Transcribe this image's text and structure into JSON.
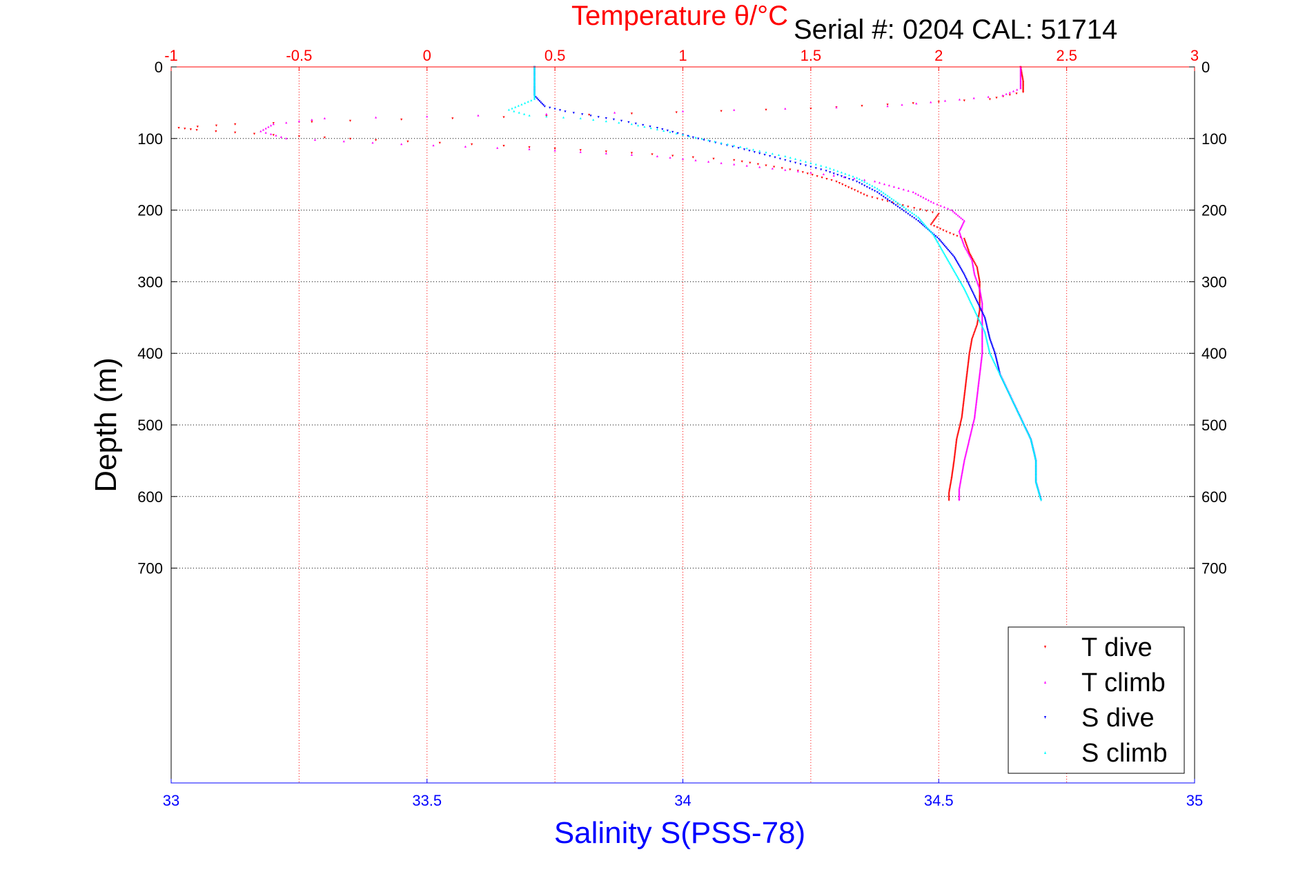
{
  "chart_data": {
    "type": "scatter",
    "title": "Temperature θ/°C",
    "subtitle": "Serial #: 0204  CAL: 51714",
    "xlabel": "Salinity S(PSS-78)",
    "ylabel": "Depth (m)",
    "grid": true,
    "legend_placement": "bottom-right",
    "y_reversed": true,
    "x_temperature": {
      "lim": [
        -1,
        3
      ],
      "ticks": [
        -1,
        -0.5,
        0,
        0.5,
        1,
        1.5,
        2,
        2.5,
        3
      ],
      "tick_labels": [
        "-1",
        "-0.5",
        "0",
        "0.5",
        "1",
        "1.5",
        "2",
        "2.5",
        "3"
      ]
    },
    "x_salinity": {
      "lim": [
        33,
        35
      ],
      "ticks": [
        33,
        33.5,
        34,
        34.5,
        35
      ],
      "tick_labels": [
        "33",
        "33.5",
        "34",
        "34.5",
        "35"
      ]
    },
    "y_depth": {
      "lim": [
        0,
        1000
      ],
      "ticks": [
        0,
        100,
        200,
        300,
        400,
        500,
        600,
        700
      ],
      "tick_labels": [
        "0",
        "100",
        "200",
        "300",
        "400",
        "500",
        "600",
        "700"
      ]
    },
    "series": [
      {
        "name": "T dive",
        "axis": "temperature",
        "marker": "triangle-down",
        "color": "#ff0000",
        "points": [
          [
            2.32,
            0
          ],
          [
            2.33,
            20
          ],
          [
            2.33,
            35
          ],
          [
            2.2,
            45
          ],
          [
            1.5,
            58
          ],
          [
            0.8,
            65
          ],
          [
            0.3,
            70
          ],
          [
            -0.3,
            75
          ],
          [
            -0.75,
            80
          ],
          [
            -0.97,
            85
          ],
          [
            -0.9,
            88
          ],
          [
            -0.6,
            95
          ],
          [
            -0.2,
            102
          ],
          [
            0.3,
            110
          ],
          [
            0.8,
            120
          ],
          [
            1.2,
            130
          ],
          [
            1.45,
            145
          ],
          [
            1.6,
            160
          ],
          [
            1.72,
            180
          ],
          [
            1.88,
            195
          ],
          [
            2.0,
            205
          ],
          [
            1.97,
            220
          ],
          [
            2.03,
            230
          ],
          [
            2.1,
            240
          ],
          [
            2.12,
            260
          ],
          [
            2.15,
            280
          ],
          [
            2.16,
            300
          ],
          [
            2.16,
            320
          ],
          [
            2.16,
            340
          ],
          [
            2.15,
            360
          ],
          [
            2.13,
            380
          ],
          [
            2.12,
            400
          ],
          [
            2.11,
            430
          ],
          [
            2.1,
            460
          ],
          [
            2.09,
            490
          ],
          [
            2.07,
            520
          ],
          [
            2.06,
            550
          ],
          [
            2.05,
            575
          ],
          [
            2.04,
            595
          ],
          [
            2.04,
            605
          ]
        ]
      },
      {
        "name": "T climb",
        "axis": "temperature",
        "marker": "triangle-up",
        "color": "#ff00ff",
        "points": [
          [
            2.32,
            0
          ],
          [
            2.32,
            15
          ],
          [
            2.32,
            30
          ],
          [
            2.25,
            40
          ],
          [
            1.8,
            55
          ],
          [
            1.0,
            62
          ],
          [
            0.2,
            68
          ],
          [
            -0.4,
            72
          ],
          [
            -0.6,
            80
          ],
          [
            -0.65,
            90
          ],
          [
            -0.55,
            100
          ],
          [
            -0.1,
            108
          ],
          [
            0.4,
            115
          ],
          [
            0.9,
            125
          ],
          [
            1.3,
            140
          ],
          [
            1.55,
            150
          ],
          [
            1.75,
            160
          ],
          [
            1.9,
            175
          ],
          [
            1.98,
            190
          ],
          [
            2.05,
            200
          ],
          [
            2.1,
            215
          ],
          [
            2.08,
            230
          ],
          [
            2.1,
            250
          ],
          [
            2.13,
            270
          ],
          [
            2.14,
            290
          ],
          [
            2.16,
            310
          ],
          [
            2.17,
            330
          ],
          [
            2.17,
            350
          ],
          [
            2.17,
            380
          ],
          [
            2.17,
            400
          ],
          [
            2.16,
            430
          ],
          [
            2.15,
            460
          ],
          [
            2.14,
            490
          ],
          [
            2.12,
            520
          ],
          [
            2.1,
            550
          ],
          [
            2.09,
            570
          ],
          [
            2.08,
            590
          ],
          [
            2.08,
            605
          ]
        ]
      },
      {
        "name": "S dive",
        "axis": "salinity",
        "marker": "triangle-down",
        "color": "#0000ff",
        "points": [
          [
            33.71,
            0
          ],
          [
            33.71,
            20
          ],
          [
            33.71,
            40
          ],
          [
            33.73,
            55
          ],
          [
            33.77,
            62
          ],
          [
            33.82,
            68
          ],
          [
            33.88,
            75
          ],
          [
            33.95,
            85
          ],
          [
            34.03,
            100
          ],
          [
            34.12,
            115
          ],
          [
            34.2,
            130
          ],
          [
            34.28,
            145
          ],
          [
            34.34,
            160
          ],
          [
            34.38,
            175
          ],
          [
            34.42,
            195
          ],
          [
            34.46,
            215
          ],
          [
            34.5,
            240
          ],
          [
            34.53,
            265
          ],
          [
            34.55,
            290
          ],
          [
            34.57,
            320
          ],
          [
            34.59,
            350
          ],
          [
            34.6,
            380
          ],
          [
            34.61,
            400
          ],
          [
            34.62,
            430
          ],
          [
            34.64,
            460
          ],
          [
            34.66,
            490
          ],
          [
            34.68,
            520
          ],
          [
            34.69,
            550
          ],
          [
            34.69,
            580
          ],
          [
            34.7,
            605
          ]
        ]
      },
      {
        "name": "S climb",
        "axis": "salinity",
        "marker": "triangle-up",
        "color": "#00ffff",
        "points": [
          [
            33.71,
            0
          ],
          [
            33.71,
            20
          ],
          [
            33.71,
            45
          ],
          [
            33.66,
            60
          ],
          [
            33.7,
            68
          ],
          [
            33.8,
            72
          ],
          [
            33.9,
            80
          ],
          [
            34.0,
            95
          ],
          [
            34.1,
            110
          ],
          [
            34.2,
            125
          ],
          [
            34.28,
            140
          ],
          [
            34.34,
            155
          ],
          [
            34.38,
            170
          ],
          [
            34.42,
            190
          ],
          [
            34.46,
            210
          ],
          [
            34.49,
            235
          ],
          [
            34.51,
            260
          ],
          [
            34.53,
            285
          ],
          [
            34.55,
            310
          ],
          [
            34.57,
            340
          ],
          [
            34.59,
            370
          ],
          [
            34.6,
            400
          ],
          [
            34.62,
            430
          ],
          [
            34.64,
            460
          ],
          [
            34.66,
            490
          ],
          [
            34.68,
            520
          ],
          [
            34.69,
            550
          ],
          [
            34.69,
            580
          ],
          [
            34.7,
            605
          ]
        ]
      }
    ]
  }
}
